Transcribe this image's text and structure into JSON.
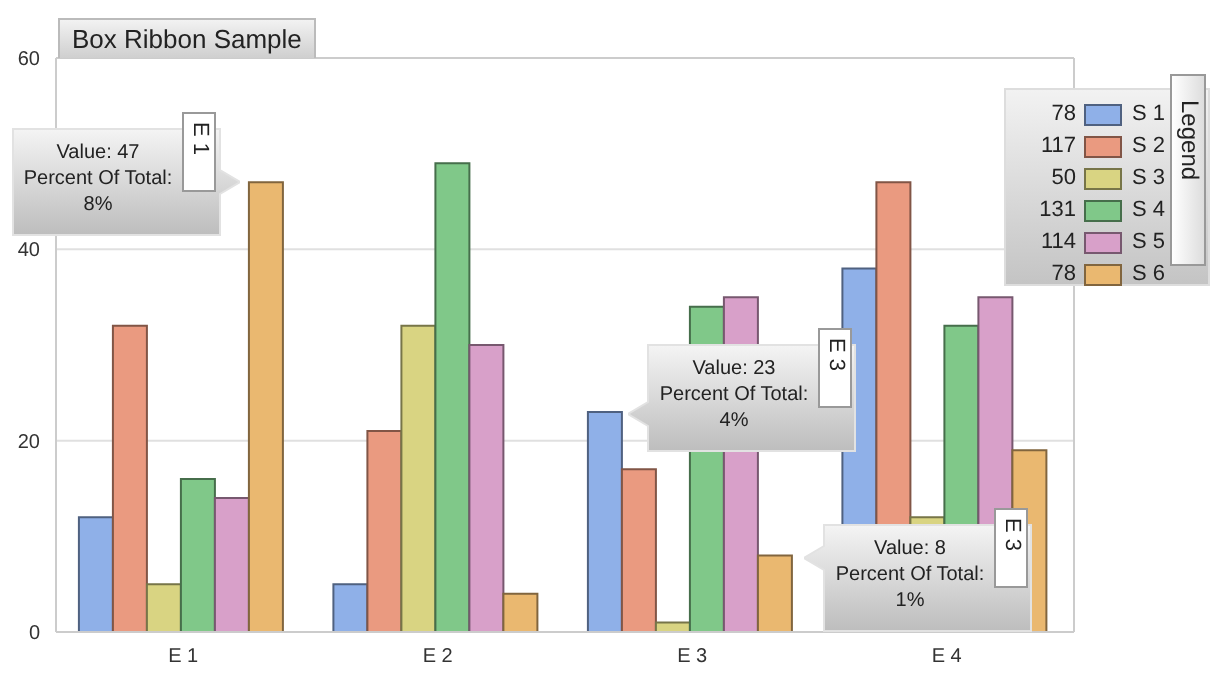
{
  "chart_data": {
    "type": "bar",
    "title": "Box Ribbon Sample",
    "categories": [
      "E 1",
      "E 2",
      "E 3",
      "E 4"
    ],
    "series": [
      {
        "name": "S 1",
        "color": "#8fb0e8",
        "values": [
          12,
          5,
          23,
          38
        ]
      },
      {
        "name": "S 2",
        "color": "#ea9a80",
        "values": [
          32,
          21,
          17,
          47
        ]
      },
      {
        "name": "S 3",
        "color": "#d9d482",
        "values": [
          5,
          32,
          1,
          12
        ]
      },
      {
        "name": "S 4",
        "color": "#80c889",
        "values": [
          16,
          49,
          34,
          32
        ]
      },
      {
        "name": "S 5",
        "color": "#d8a0c9",
        "values": [
          14,
          30,
          35,
          35
        ]
      },
      {
        "name": "S 6",
        "color": "#eab870",
        "values": [
          47,
          4,
          8,
          19
        ]
      }
    ],
    "legend_title": "Legend",
    "legend": "top right",
    "ylim": [
      0,
      60
    ],
    "yticks": [
      0,
      20,
      40,
      60
    ],
    "grid": "y",
    "annotations": [
      "78",
      "117",
      "50",
      "131",
      "114",
      "78",
      "Value: 47\nPercent Of Total:\n8%",
      "E 1",
      "Value: 23\nPercent Of Total:\n4%",
      "E 3",
      "Value: 8\nPercent Of Total:\n1%",
      "E 3"
    ]
  }
}
